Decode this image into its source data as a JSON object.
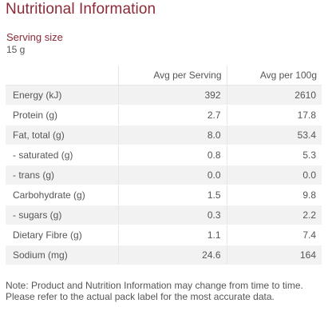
{
  "title": "Nutritional Information",
  "serving": {
    "label": "Serving size",
    "value": "15 g"
  },
  "table": {
    "headers": [
      "",
      "Avg per Serving",
      "Avg per 100g"
    ],
    "rows": [
      {
        "label": "Energy (kJ)",
        "per_serving": "392",
        "per_100g": "2610"
      },
      {
        "label": "Protein (g)",
        "per_serving": "2.7",
        "per_100g": "17.8"
      },
      {
        "label": "Fat, total (g)",
        "per_serving": "8.0",
        "per_100g": "53.4"
      },
      {
        "label": "- saturated (g)",
        "per_serving": "0.8",
        "per_100g": "5.3"
      },
      {
        "label": "- trans (g)",
        "per_serving": "0.0",
        "per_100g": "0.0"
      },
      {
        "label": "Carbohydrate (g)",
        "per_serving": "1.5",
        "per_100g": "9.8"
      },
      {
        "label": "- sugars (g)",
        "per_serving": "0.3",
        "per_100g": "2.2"
      },
      {
        "label": "Dietary Fibre (g)",
        "per_serving": "1.1",
        "per_100g": "7.4"
      },
      {
        "label": "Sodium (mg)",
        "per_serving": "24.6",
        "per_100g": "164"
      }
    ]
  },
  "note": "Note: Product and Nutrition Information may change from time to time. Please refer to the actual pack label for the most accurate data.",
  "colors": {
    "title": "#8b2a36",
    "text": "#555555",
    "row_shade": "#f2f2f2",
    "divider": "#e6e6e6"
  }
}
